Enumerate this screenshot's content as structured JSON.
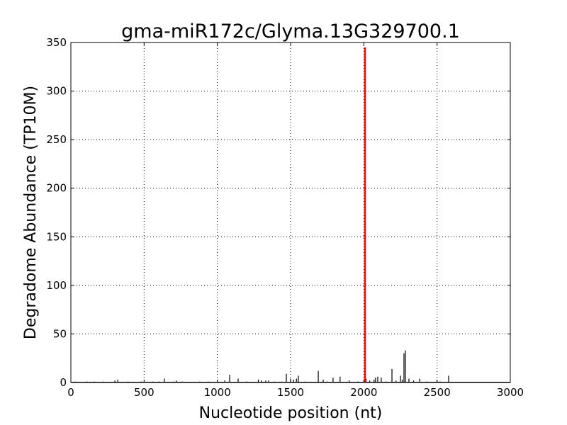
{
  "chart_data": {
    "type": "bar",
    "title": "gma-miR172c/Glyma.13G329700.1",
    "xlabel": "Nucleotide position (nt)",
    "ylabel": "Degradome Abundance (TP10M)",
    "xlim": [
      0,
      3000
    ],
    "ylim": [
      0,
      350
    ],
    "xticks": [
      0,
      500,
      1000,
      1500,
      2000,
      2500,
      3000
    ],
    "yticks": [
      0,
      50,
      100,
      150,
      200,
      250,
      300,
      350
    ],
    "grid": true,
    "colors": {
      "bars": "#000000",
      "highlight": "#ff0000"
    },
    "highlight": {
      "x": 2008,
      "y": 345
    },
    "bars": [
      [
        30,
        1
      ],
      [
        110,
        1
      ],
      [
        160,
        1
      ],
      [
        220,
        1
      ],
      [
        300,
        2
      ],
      [
        320,
        3
      ],
      [
        390,
        1
      ],
      [
        480,
        1
      ],
      [
        560,
        1
      ],
      [
        600,
        1
      ],
      [
        639,
        4
      ],
      [
        700,
        1
      ],
      [
        720,
        2
      ],
      [
        760,
        1
      ],
      [
        880,
        1
      ],
      [
        940,
        1
      ],
      [
        1000,
        1
      ],
      [
        1050,
        2
      ],
      [
        1084,
        8
      ],
      [
        1142,
        4
      ],
      [
        1200,
        1
      ],
      [
        1280,
        3
      ],
      [
        1300,
        2
      ],
      [
        1330,
        2
      ],
      [
        1350,
        2
      ],
      [
        1390,
        1
      ],
      [
        1440,
        1
      ],
      [
        1471,
        9
      ],
      [
        1500,
        4
      ],
      [
        1520,
        3
      ],
      [
        1540,
        4
      ],
      [
        1553,
        7
      ],
      [
        1600,
        1
      ],
      [
        1689,
        12
      ],
      [
        1723,
        3
      ],
      [
        1750,
        1
      ],
      [
        1790,
        5
      ],
      [
        1838,
        6
      ],
      [
        1900,
        2
      ],
      [
        1960,
        1
      ],
      [
        2015,
        4
      ],
      [
        2040,
        2
      ],
      [
        2070,
        3
      ],
      [
        2080,
        5
      ],
      [
        2095,
        6
      ],
      [
        2119,
        5
      ],
      [
        2150,
        1
      ],
      [
        2192,
        14
      ],
      [
        2220,
        2
      ],
      [
        2250,
        7
      ],
      [
        2262,
        3
      ],
      [
        2274,
        30
      ],
      [
        2284,
        33
      ],
      [
        2308,
        4
      ],
      [
        2340,
        2
      ],
      [
        2381,
        4
      ],
      [
        2430,
        1
      ],
      [
        2500,
        2
      ],
      [
        2520,
        1
      ],
      [
        2579,
        7
      ]
    ]
  }
}
